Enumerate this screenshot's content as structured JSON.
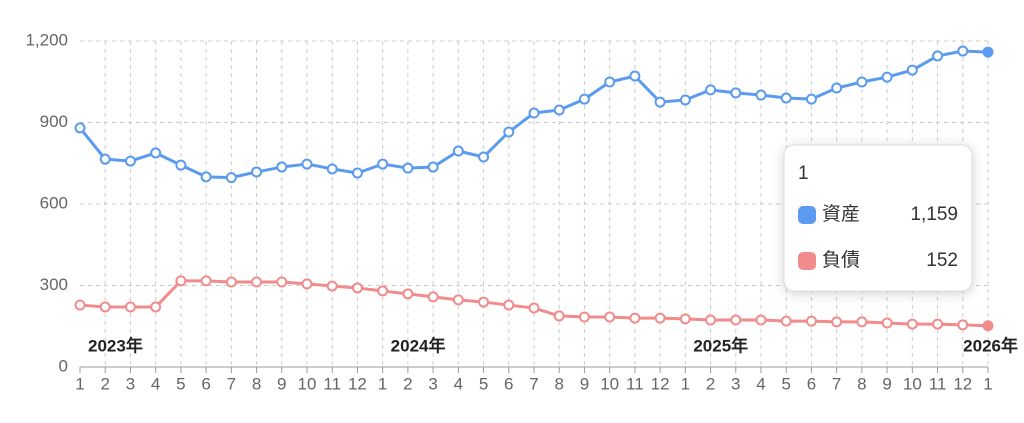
{
  "chart_data": {
    "type": "line",
    "categories": [
      "1",
      "2",
      "3",
      "4",
      "5",
      "6",
      "7",
      "8",
      "9",
      "10",
      "11",
      "12",
      "1",
      "2",
      "3",
      "4",
      "5",
      "6",
      "7",
      "8",
      "9",
      "10",
      "11",
      "12",
      "1",
      "2",
      "3",
      "4",
      "5",
      "6",
      "7",
      "8",
      "9",
      "10",
      "11",
      "12",
      "1"
    ],
    "series": [
      {
        "name": "資産",
        "color": "#5b9bef",
        "values": [
          880,
          765,
          758,
          788,
          743,
          700,
          697,
          718,
          736,
          747,
          729,
          714,
          747,
          732,
          736,
          795,
          773,
          865,
          935,
          946,
          986,
          1049,
          1071,
          975,
          983,
          1020,
          1009,
          1001,
          990,
          986,
          1027,
          1049,
          1067,
          1093,
          1145,
          1163,
          1159
        ]
      },
      {
        "name": "負債",
        "color": "#f28b8b",
        "values": [
          228,
          221,
          221,
          221,
          317,
          317,
          313,
          313,
          313,
          306,
          298,
          291,
          280,
          269,
          258,
          247,
          239,
          228,
          217,
          188,
          184,
          184,
          180,
          180,
          177,
          173,
          173,
          173,
          169,
          169,
          166,
          166,
          162,
          158,
          158,
          155,
          152
        ]
      }
    ],
    "ylim": [
      0,
      1200
    ],
    "yticks": [
      0,
      300,
      600,
      900,
      {
        "value": 1200,
        "label": "1,200"
      }
    ],
    "grid": true,
    "annotations": [
      {
        "text": "2023年",
        "index": 0
      },
      {
        "text": "2024年",
        "index": 12
      },
      {
        "text": "2025年",
        "index": 24
      },
      {
        "text": "2026年",
        "index": 36
      }
    ],
    "tooltip": {
      "index": 36,
      "value_labels": [
        "1,159",
        "152"
      ]
    }
  }
}
